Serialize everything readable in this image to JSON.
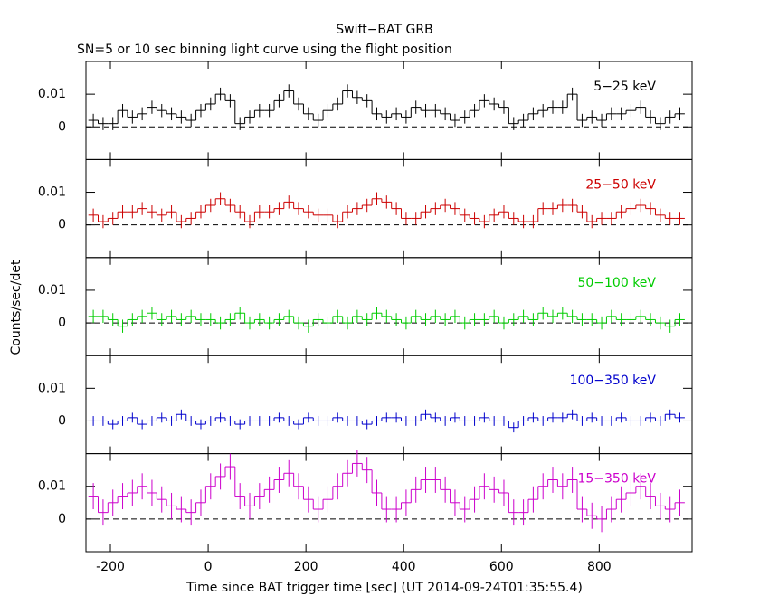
{
  "title": "Swift−BAT GRB",
  "subtitle": "SN=5 or 10 sec binning light curve using the flight position",
  "xlabel": "Time since BAT trigger time [sec] (UT 2014-09-24T01:35:55.4)",
  "ylabel": "Counts/sec/det",
  "chart_data": [
    {
      "type": "step",
      "label": "5−25 keV",
      "color": "#000000",
      "x": [
        -235,
        -215,
        -195,
        -175,
        -155,
        -135,
        -115,
        -95,
        -75,
        -55,
        -35,
        -15,
        5,
        25,
        45,
        65,
        85,
        105,
        125,
        145,
        165,
        185,
        205,
        225,
        245,
        265,
        285,
        305,
        325,
        345,
        365,
        385,
        405,
        425,
        445,
        465,
        485,
        505,
        525,
        545,
        565,
        585,
        605,
        625,
        645,
        665,
        685,
        705,
        725,
        745,
        765,
        785,
        805,
        825,
        845,
        865,
        885,
        905,
        925,
        945,
        965
      ],
      "values": [
        0.002,
        0.001,
        0.001,
        0.005,
        0.003,
        0.004,
        0.006,
        0.005,
        0.004,
        0.003,
        0.002,
        0.005,
        0.007,
        0.01,
        0.008,
        0.001,
        0.003,
        0.005,
        0.005,
        0.008,
        0.011,
        0.007,
        0.004,
        0.002,
        0.005,
        0.007,
        0.011,
        0.009,
        0.008,
        0.004,
        0.003,
        0.004,
        0.003,
        0.006,
        0.005,
        0.005,
        0.004,
        0.002,
        0.003,
        0.005,
        0.008,
        0.007,
        0.006,
        0.001,
        0.002,
        0.004,
        0.005,
        0.006,
        0.006,
        0.01,
        0.002,
        0.003,
        0.002,
        0.004,
        0.004,
        0.005,
        0.006,
        0.003,
        0.001,
        0.003,
        0.004
      ],
      "error": 0.002,
      "hline": 0,
      "xlim": [
        -250,
        990
      ],
      "xticks": [
        -200,
        0,
        200,
        400,
        600,
        800
      ],
      "ylim": [
        -0.01,
        0.02
      ],
      "yticks": [
        0,
        0.01
      ]
    },
    {
      "type": "step",
      "label": "25−50 keV",
      "color": "#cc0000",
      "x": [
        -235,
        -215,
        -195,
        -175,
        -155,
        -135,
        -115,
        -95,
        -75,
        -55,
        -35,
        -15,
        5,
        25,
        45,
        65,
        85,
        105,
        125,
        145,
        165,
        185,
        205,
        225,
        245,
        265,
        285,
        305,
        325,
        345,
        365,
        385,
        405,
        425,
        445,
        465,
        485,
        505,
        525,
        545,
        565,
        585,
        605,
        625,
        645,
        665,
        685,
        705,
        725,
        745,
        765,
        785,
        805,
        825,
        845,
        865,
        885,
        905,
        925,
        945,
        965
      ],
      "values": [
        0.003,
        0.001,
        0.002,
        0.004,
        0.004,
        0.005,
        0.004,
        0.003,
        0.004,
        0.001,
        0.002,
        0.004,
        0.006,
        0.008,
        0.006,
        0.004,
        0.001,
        0.004,
        0.004,
        0.005,
        0.007,
        0.005,
        0.004,
        0.003,
        0.003,
        0.001,
        0.004,
        0.005,
        0.006,
        0.008,
        0.007,
        0.005,
        0.002,
        0.002,
        0.004,
        0.005,
        0.006,
        0.005,
        0.003,
        0.002,
        0.001,
        0.003,
        0.004,
        0.002,
        0.001,
        0.001,
        0.005,
        0.005,
        0.006,
        0.006,
        0.004,
        0.001,
        0.002,
        0.002,
        0.004,
        0.005,
        0.006,
        0.005,
        0.003,
        0.002,
        0.002
      ],
      "error": 0.002,
      "hline": 0,
      "xlim": [
        -250,
        990
      ],
      "xticks": [
        -200,
        0,
        200,
        400,
        600,
        800
      ],
      "ylim": [
        -0.01,
        0.02
      ],
      "yticks": [
        0,
        0.01
      ]
    },
    {
      "type": "step",
      "label": "50−100 keV",
      "color": "#00cc00",
      "x": [
        -235,
        -215,
        -195,
        -175,
        -155,
        -135,
        -115,
        -95,
        -75,
        -55,
        -35,
        -15,
        5,
        25,
        45,
        65,
        85,
        105,
        125,
        145,
        165,
        185,
        205,
        225,
        245,
        265,
        285,
        305,
        325,
        345,
        365,
        385,
        405,
        425,
        445,
        465,
        485,
        505,
        525,
        545,
        565,
        585,
        605,
        625,
        645,
        665,
        685,
        705,
        725,
        745,
        765,
        785,
        805,
        825,
        845,
        865,
        885,
        905,
        925,
        945,
        965
      ],
      "values": [
        0.002,
        0.002,
        0.001,
        -0.001,
        0.001,
        0.002,
        0.003,
        0.001,
        0.002,
        0.001,
        0.002,
        0.001,
        0.001,
        0,
        0.001,
        0.003,
        0,
        0.001,
        0,
        0.001,
        0.002,
        0,
        -0.001,
        0.001,
        0,
        0.002,
        0,
        0.002,
        0.001,
        0.003,
        0.002,
        0.001,
        0,
        0.002,
        0.001,
        0.002,
        0.001,
        0.002,
        0,
        0.001,
        0.001,
        0.002,
        0,
        0.001,
        0.002,
        0.001,
        0.003,
        0.002,
        0.003,
        0.002,
        0.001,
        0.001,
        0,
        0.002,
        0.001,
        0.001,
        0.002,
        0.001,
        0,
        -0.001,
        0.001
      ],
      "error": 0.002,
      "hline": 0,
      "xlim": [
        -250,
        990
      ],
      "xticks": [
        -200,
        0,
        200,
        400,
        600,
        800
      ],
      "ylim": [
        -0.01,
        0.02
      ],
      "yticks": [
        0,
        0.01
      ]
    },
    {
      "type": "step",
      "label": "100−350 keV",
      "color": "#0000cc",
      "x": [
        -235,
        -215,
        -195,
        -175,
        -155,
        -135,
        -115,
        -95,
        -75,
        -55,
        -35,
        -15,
        5,
        25,
        45,
        65,
        85,
        105,
        125,
        145,
        165,
        185,
        205,
        225,
        245,
        265,
        285,
        305,
        325,
        345,
        365,
        385,
        405,
        425,
        445,
        465,
        485,
        505,
        525,
        545,
        565,
        585,
        605,
        625,
        645,
        665,
        685,
        705,
        725,
        745,
        765,
        785,
        805,
        825,
        845,
        865,
        885,
        905,
        925,
        945,
        965
      ],
      "values": [
        0,
        0,
        -0.001,
        0,
        0.001,
        -0.001,
        0,
        0.001,
        0,
        0.002,
        0,
        -0.001,
        0,
        0.001,
        0,
        -0.001,
        0,
        0,
        0,
        0.001,
        0,
        -0.001,
        0.001,
        0,
        0,
        0.001,
        0,
        0,
        -0.001,
        0,
        0.001,
        0.001,
        0,
        0,
        0.002,
        0.001,
        0,
        0.001,
        0,
        0,
        0.001,
        0,
        0,
        -0.002,
        0,
        0.001,
        0,
        0.001,
        0.001,
        0.002,
        0,
        0.001,
        0,
        0,
        0.001,
        0,
        0,
        0.001,
        0,
        0.002,
        0.001
      ],
      "error": 0.0015,
      "hline": 0,
      "xlim": [
        -250,
        990
      ],
      "xticks": [
        -200,
        0,
        200,
        400,
        600,
        800
      ],
      "ylim": [
        -0.01,
        0.02
      ],
      "yticks": [
        0,
        0.01
      ]
    },
    {
      "type": "step",
      "label": "15−350 keV",
      "color": "#cc00cc",
      "x": [
        -235,
        -215,
        -195,
        -175,
        -155,
        -135,
        -115,
        -95,
        -75,
        -55,
        -35,
        -15,
        5,
        25,
        45,
        65,
        85,
        105,
        125,
        145,
        165,
        185,
        205,
        225,
        245,
        265,
        285,
        305,
        325,
        345,
        365,
        385,
        405,
        425,
        445,
        465,
        485,
        505,
        525,
        545,
        565,
        585,
        605,
        625,
        645,
        665,
        685,
        705,
        725,
        745,
        765,
        785,
        805,
        825,
        845,
        865,
        885,
        905,
        925,
        945,
        965
      ],
      "values": [
        0.007,
        0.002,
        0.005,
        0.007,
        0.008,
        0.01,
        0.008,
        0.006,
        0.004,
        0.003,
        0.002,
        0.005,
        0.01,
        0.013,
        0.016,
        0.007,
        0.004,
        0.007,
        0.009,
        0.012,
        0.014,
        0.01,
        0.006,
        0.003,
        0.006,
        0.01,
        0.014,
        0.017,
        0.015,
        0.008,
        0.003,
        0.003,
        0.005,
        0.009,
        0.012,
        0.012,
        0.009,
        0.005,
        0.003,
        0.006,
        0.01,
        0.009,
        0.008,
        0.002,
        0.002,
        0.006,
        0.01,
        0.012,
        0.01,
        0.012,
        0.003,
        0.001,
        0,
        0.003,
        0.006,
        0.008,
        0.01,
        0.007,
        0.004,
        0.003,
        0.005
      ],
      "error": 0.004,
      "hline": 0,
      "xlim": [
        -250,
        990
      ],
      "xticks": [
        -200,
        0,
        200,
        400,
        600,
        800
      ],
      "ylim": [
        -0.01,
        0.02
      ],
      "yticks": [
        0,
        0.01
      ]
    }
  ]
}
